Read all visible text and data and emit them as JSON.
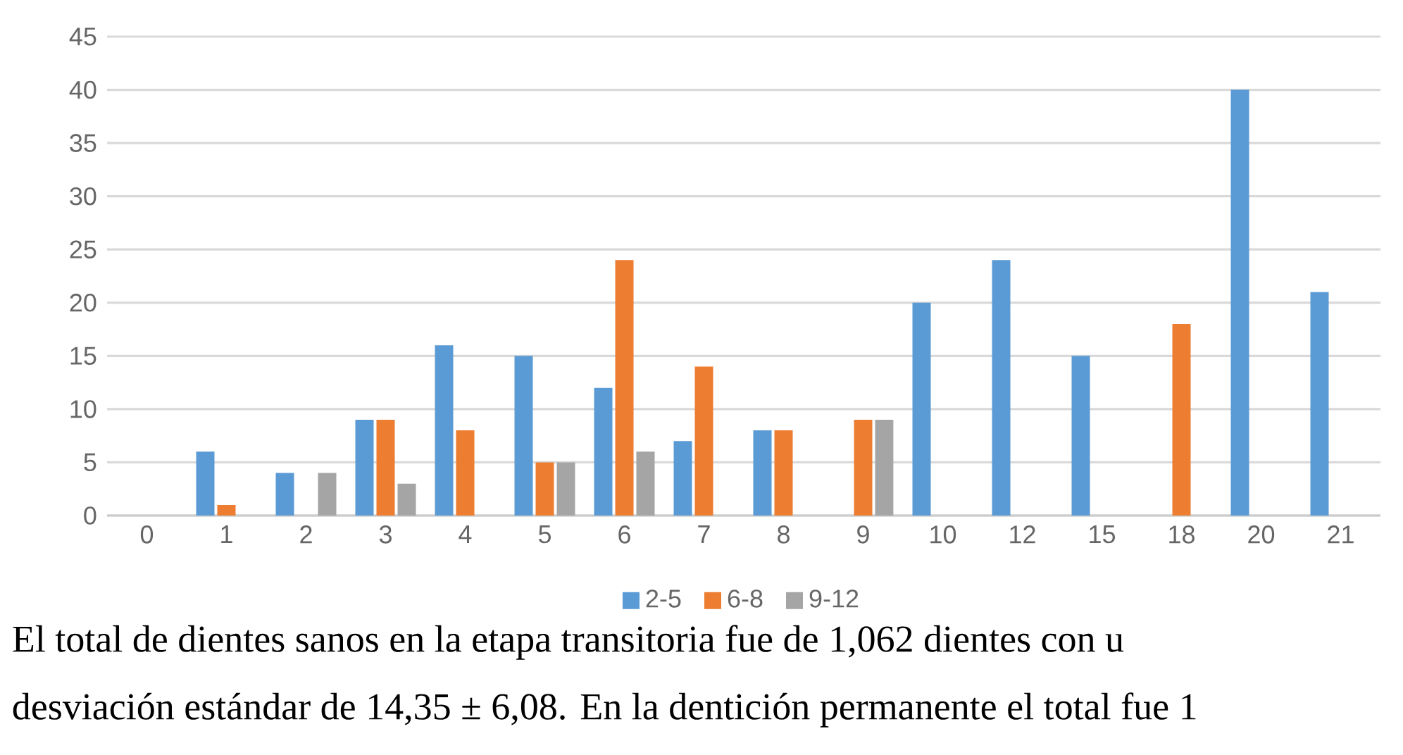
{
  "chart_data": {
    "type": "bar",
    "categories": [
      "0",
      "1",
      "2",
      "3",
      "4",
      "5",
      "6",
      "7",
      "8",
      "9",
      "10",
      "12",
      "15",
      "18",
      "20",
      "21"
    ],
    "series": [
      {
        "name": "2-5",
        "color": "#5b9bd5",
        "values": [
          null,
          6,
          4,
          9,
          16,
          15,
          12,
          7,
          8,
          null,
          20,
          24,
          15,
          null,
          40,
          21
        ]
      },
      {
        "name": "6-8",
        "color": "#ed7d31",
        "values": [
          null,
          1,
          null,
          9,
          8,
          5,
          24,
          14,
          8,
          9,
          null,
          null,
          null,
          18,
          null,
          null
        ]
      },
      {
        "name": "9-12",
        "color": "#a5a5a5",
        "values": [
          null,
          null,
          4,
          3,
          null,
          5,
          6,
          null,
          null,
          9,
          null,
          null,
          null,
          null,
          null,
          null
        ]
      }
    ],
    "ylim": [
      0,
      45
    ],
    "yticks": [
      0,
      5,
      10,
      15,
      20,
      25,
      30,
      35,
      40,
      45
    ],
    "grid": "y",
    "legend": "bottom",
    "annotations": [
      "El total de dientes sanos en la etapa transitoria fue de 1,062 dientes con u",
      "desviación estándar de 14,35 ± 6,08. En la dentición permanente el total fue 1"
    ]
  }
}
